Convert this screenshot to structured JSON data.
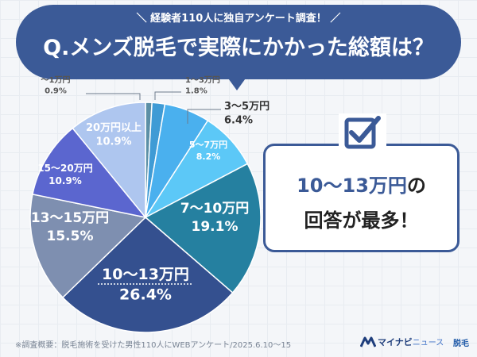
{
  "header": {
    "subtitle": "＼ 経験者110人に独自アンケート調査！ ／",
    "title": "Q.メンズ脱毛で実際にかかった総額は？"
  },
  "chart_data": {
    "type": "pie",
    "title": "Q.メンズ脱毛で実際にかかった総額は？",
    "slices": [
      {
        "label": "〜1万円",
        "value": 0.9,
        "value_label": "0.9%",
        "color": "#5b8fa6"
      },
      {
        "label": "1〜3万円",
        "value": 1.8,
        "value_label": "1.8%",
        "color": "#3f9bd5"
      },
      {
        "label": "3〜5万円",
        "value": 6.4,
        "value_label": "6.4%",
        "color": "#4ab0ee"
      },
      {
        "label": "5〜7万円",
        "value": 8.2,
        "value_label": "8.2%",
        "color": "#5cc8f7"
      },
      {
        "label": "7〜10万円",
        "value": 19.1,
        "value_label": "19.1%",
        "color": "#2580a0"
      },
      {
        "label": "10〜13万円",
        "value": 26.4,
        "value_label": "26.4%",
        "color": "#34508f"
      },
      {
        "label": "13〜15万円",
        "value": 15.5,
        "value_label": "15.5%",
        "color": "#7e8fb0"
      },
      {
        "label": "15〜20万円",
        "value": 10.9,
        "value_label": "10.9%",
        "color": "#5b66cf"
      },
      {
        "label": "20万円以上",
        "value": 10.9,
        "value_label": "10.9%",
        "color": "#aec6ef"
      }
    ]
  },
  "result": {
    "line1_accent": "10〜13万円",
    "line1_rest": "の",
    "line2": "回答が最多！"
  },
  "footer": {
    "note": "※調査概要：脱毛施術を受けた男性110人にWEBアンケート/2025.6.10〜15",
    "brand_main": "マイナビ",
    "brand_sub": "ニュース",
    "brand_tag": "脱毛"
  },
  "icons": {
    "result": "checkbox-check-icon",
    "brand": "mynavi-logo-icon"
  }
}
